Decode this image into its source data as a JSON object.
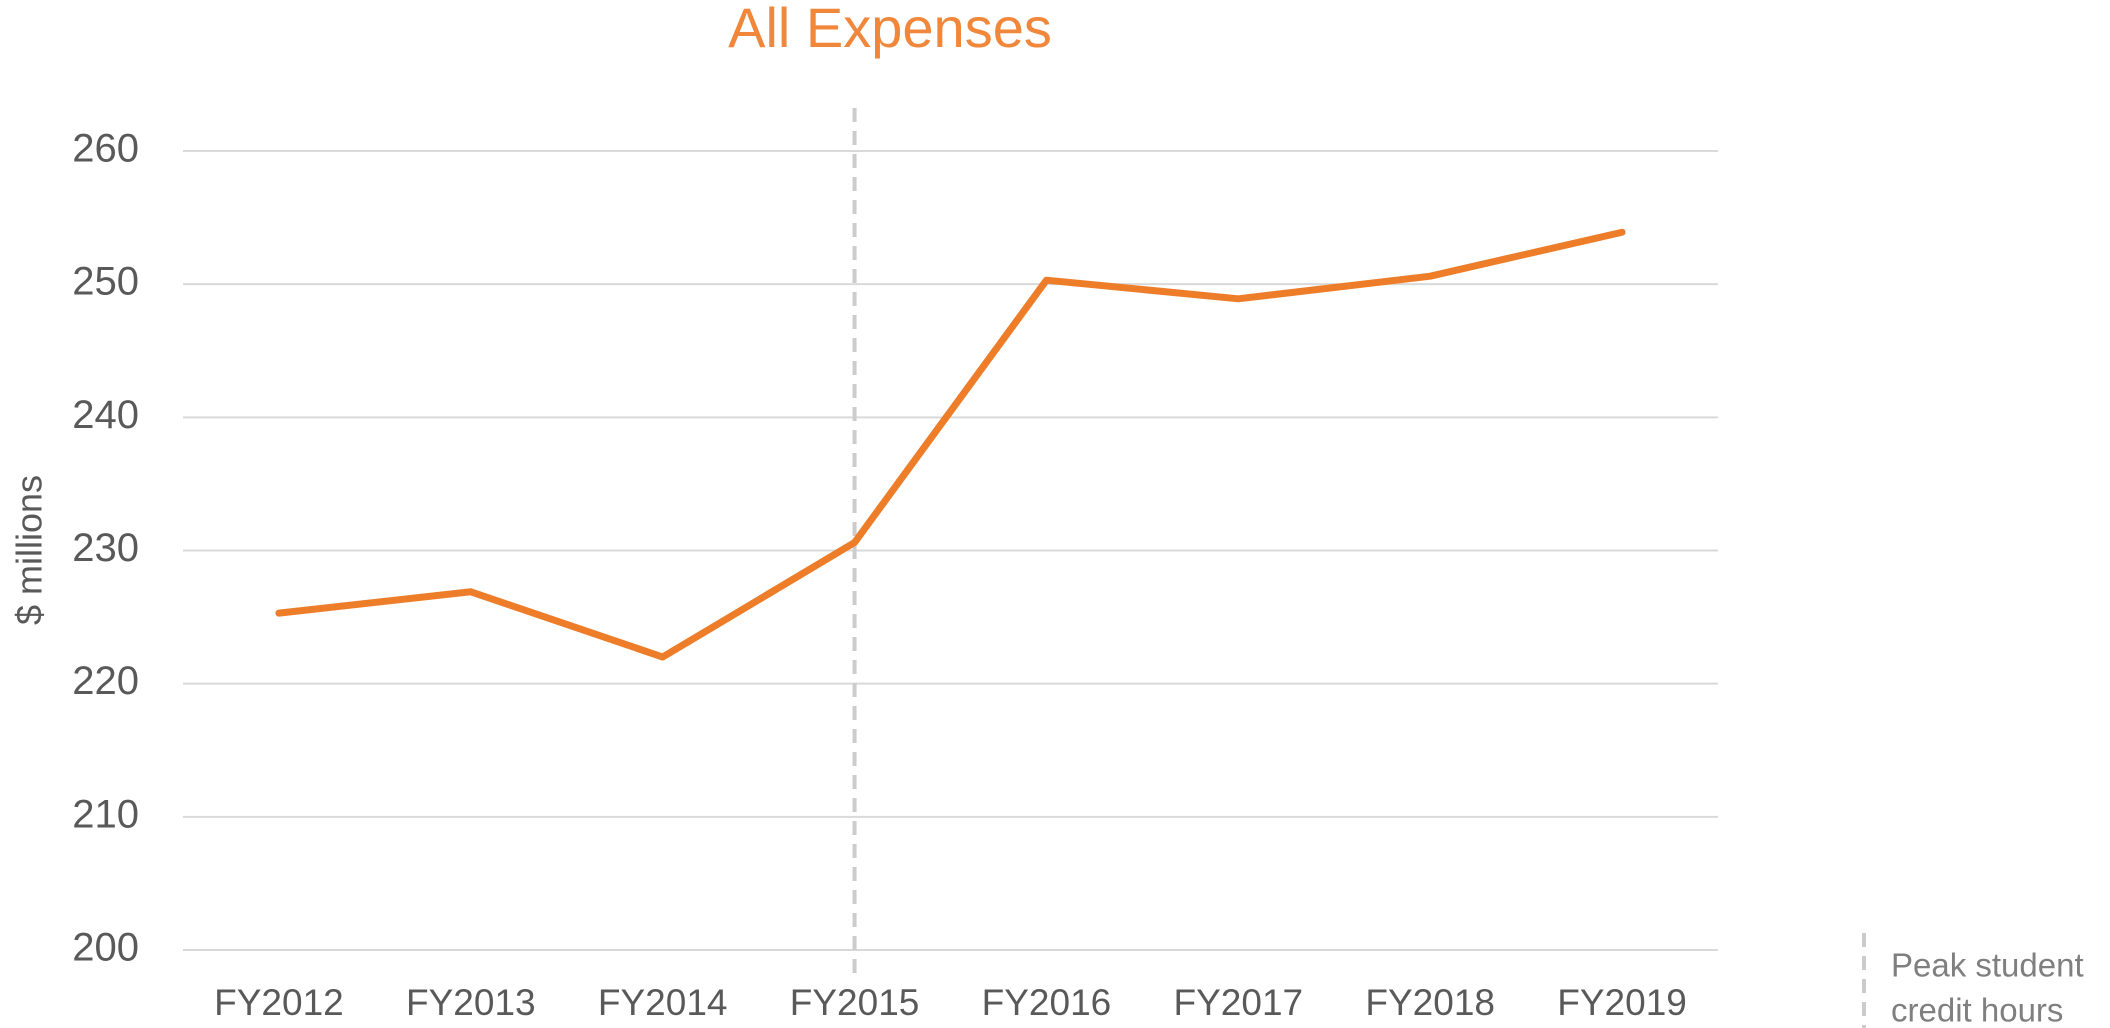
{
  "chart_data": {
    "type": "line",
    "title": "All Expenses",
    "y_label": "$ millions",
    "categories": [
      "FY2012",
      "FY2013",
      "FY2014",
      "FY2015",
      "FY2016",
      "FY2017",
      "FY2018",
      "FY2019"
    ],
    "series": [
      {
        "name": "All Expenses",
        "color": "#ee7d2a",
        "values": [
          225.3,
          226.9,
          222.0,
          230.6,
          250.3,
          248.9,
          250.6,
          253.9
        ]
      }
    ],
    "ylim": [
      200,
      260
    ],
    "yticks": [
      200,
      210,
      220,
      230,
      240,
      250,
      260
    ],
    "grid": true,
    "annotation": {
      "category": "FY2015",
      "text_lines": [
        "Peak student",
        "credit hours"
      ],
      "color": "#cccccc"
    }
  }
}
